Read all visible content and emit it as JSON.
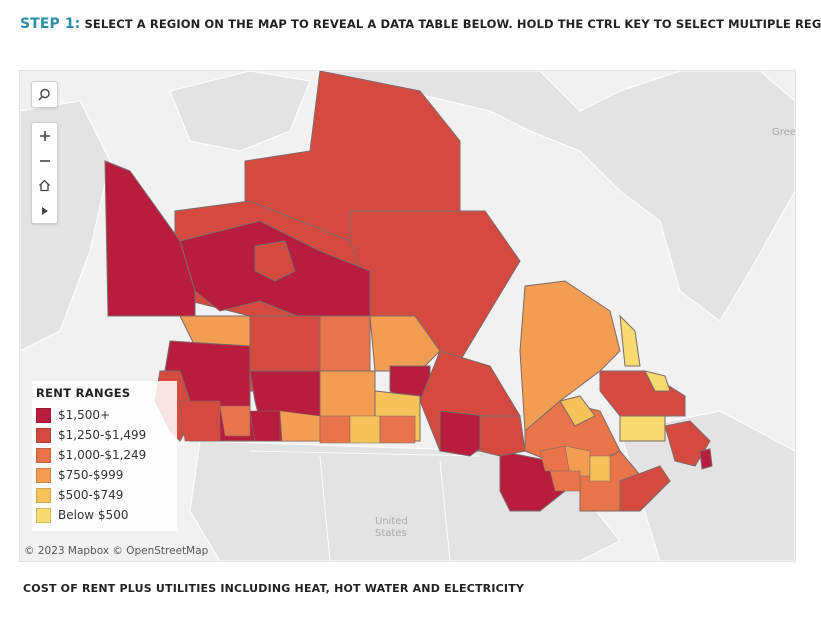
{
  "header": {
    "step_label": "STEP 1:",
    "instruction": "SELECT A REGION ON THE MAP TO REVEAL A DATA TABLE BELOW. HOLD THE CTRL KEY TO SELECT MULTIPLE REGIONS"
  },
  "map": {
    "controls": {
      "search_icon": "search-icon",
      "zoom_in_icon": "plus-icon",
      "zoom_out_icon": "minus-icon",
      "home_icon": "home-icon",
      "expand_icon": "play-arrow-icon"
    },
    "background_labels": {
      "greenland": "Gree",
      "united_states": "United\nStates"
    },
    "attribution": "© 2023 Mapbox  © OpenStreetMap"
  },
  "legend": {
    "title": "RENT RANGES",
    "items": [
      {
        "label": "$1,500+",
        "color": "#b81d3d"
      },
      {
        "label": "$1,250-$1,499",
        "color": "#d54a3f"
      },
      {
        "label": "$1,000-$1,249",
        "color": "#e9744a"
      },
      {
        "label": "$750-$999",
        "color": "#f39d52"
      },
      {
        "label": "$500-$749",
        "color": "#f6c35a"
      },
      {
        "label": "Below $500",
        "color": "#f8db6f"
      }
    ]
  },
  "footer": {
    "caption": "COST OF RENT PLUS UTILITIES INCLUDING HEAT, HOT WATER AND ELECTRICITY"
  }
}
